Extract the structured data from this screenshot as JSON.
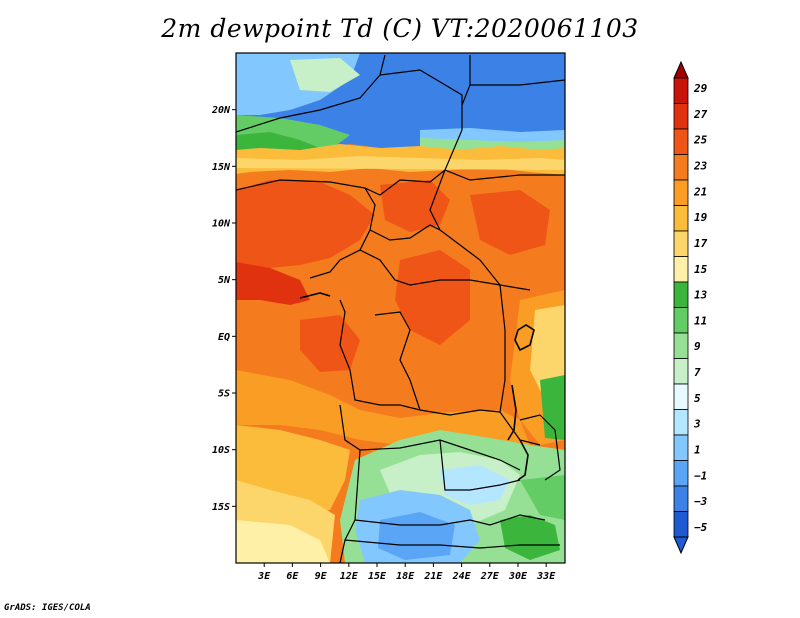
{
  "title": "2m dewpoint Td (C) VT:2020061103",
  "credit": "GrADS: IGES/COLA",
  "map": {
    "lat_labels": [
      "20N",
      "15N",
      "10N",
      "5N",
      "EQ",
      "5S",
      "10S",
      "15S"
    ],
    "lat_values": [
      20,
      15,
      10,
      5,
      0,
      -5,
      -10,
      -15
    ],
    "lon_labels": [
      "3E",
      "6E",
      "9E",
      "12E",
      "15E",
      "18E",
      "21E",
      "24E",
      "27E",
      "30E",
      "33E"
    ],
    "lon_values": [
      3,
      6,
      9,
      12,
      15,
      18,
      21,
      24,
      27,
      30,
      33
    ],
    "lon_range": [
      0,
      35
    ],
    "lat_range": [
      -20,
      25
    ]
  },
  "colorbar": {
    "labels": [
      "29",
      "27",
      "25",
      "23",
      "21",
      "19",
      "17",
      "15",
      "13",
      "11",
      "9",
      "7",
      "5",
      "3",
      "1",
      "−1",
      "−3",
      "−5"
    ],
    "colors": [
      "#a00000",
      "#c8140a",
      "#e0320f",
      "#f05518",
      "#f47b1e",
      "#f99d24",
      "#fbbc3c",
      "#fcd66a",
      "#fff0a8",
      "#3cb53c",
      "#64cc64",
      "#96e096",
      "#c8f0c8",
      "#e6faff",
      "#b4e6ff",
      "#82c8ff",
      "#5aa5f5",
      "#3c82e6",
      "#1e5ad2"
    ]
  }
}
